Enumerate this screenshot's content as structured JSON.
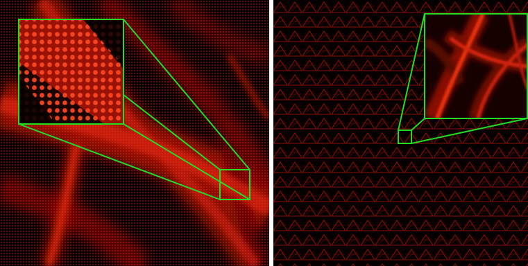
{
  "figure": {
    "panels": [
      {
        "id": "left",
        "description_tag": "microscopy-fibers-fine-dot-lattice",
        "zoom_box_color": "#22dd22"
      },
      {
        "id": "right",
        "description_tag": "microscopy-fibers-triangular-aliasing",
        "zoom_box_color": "#22dd22"
      }
    ],
    "colors": {
      "fiber": "#d81a0a",
      "background": "#050000",
      "zoom_box": "#22dd22",
      "separator": "#ffffff"
    }
  }
}
